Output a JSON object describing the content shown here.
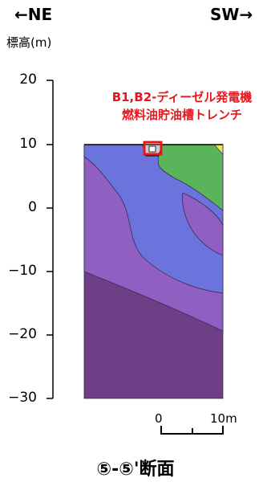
{
  "header": {
    "left_direction": "←NE",
    "right_direction": "SW→"
  },
  "axis": {
    "label": "標高(m)",
    "ticks": [
      "20",
      "10",
      "0",
      "−10",
      "−20",
      "−30"
    ]
  },
  "annotation": {
    "line1": "B1,B2-ディーゼル発電機",
    "line2": "燃料油貯油槽トレンチ"
  },
  "scale_bar": {
    "start_label": "0",
    "end_label": "10m"
  },
  "section_title": "⑤-⑤'断面",
  "colors": {
    "layer_top_green": "#5ab55a",
    "layer_yellow": "#e8e84a",
    "layer_blue": "#6b74dc",
    "layer_violet": "#8f5fc2",
    "layer_dark_purple": "#6e3f86",
    "annotation_red": "#e8161b"
  }
}
